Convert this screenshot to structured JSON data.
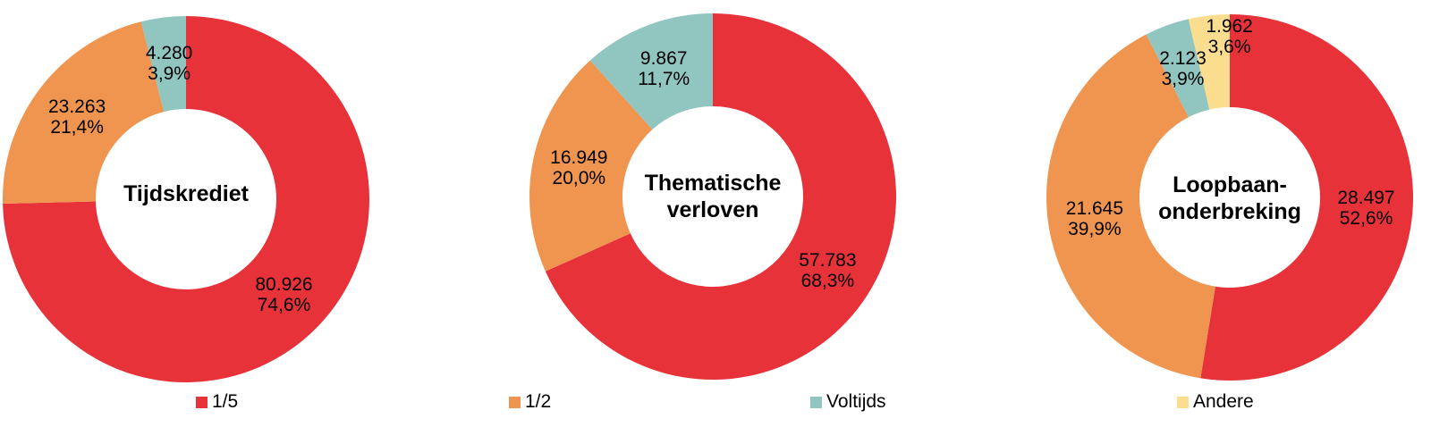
{
  "page": {
    "background": "#FFFFFF"
  },
  "chart_data": [
    {
      "type": "pie",
      "subtype": "donut",
      "title": "Tijdskrediet",
      "categories": [
        "1/5",
        "1/2",
        "Voltijds"
      ],
      "values": [
        80926,
        23263,
        4280
      ],
      "value_labels": [
        "80.926",
        "23.263",
        "4.280"
      ],
      "pct_labels": [
        "74,6%",
        "21,4%",
        "3,9%"
      ],
      "colors": [
        "#E73239",
        "#F0954F",
        "#90C5C0"
      ],
      "start_angle_deg": 0,
      "direction": "clockwise",
      "legend_position": "bottom"
    },
    {
      "type": "pie",
      "subtype": "donut",
      "title": "Thematische verloven",
      "categories": [
        "1/5",
        "1/2",
        "Voltijds"
      ],
      "values": [
        57783,
        16949,
        9867
      ],
      "value_labels": [
        "57.783",
        "16.949",
        "9.867"
      ],
      "pct_labels": [
        "68,3%",
        "20,0%",
        "11,7%"
      ],
      "colors": [
        "#E73239",
        "#F0954F",
        "#90C5C0"
      ],
      "start_angle_deg": 0,
      "direction": "clockwise",
      "legend_position": "bottom"
    },
    {
      "type": "pie",
      "subtype": "donut",
      "title": "Loopbaan-onderbreking",
      "categories": [
        "1/5",
        "1/2",
        "Voltijds",
        "Andere"
      ],
      "values": [
        28497,
        21645,
        2123,
        1962
      ],
      "value_labels": [
        "28.497",
        "21.645",
        "2.123",
        "1.962"
      ],
      "pct_labels": [
        "52,6%",
        "39,9%",
        "3,9%",
        "3,6%"
      ],
      "colors": [
        "#E73239",
        "#F0954F",
        "#90C5C0",
        "#FADD8E"
      ],
      "start_angle_deg": 0,
      "direction": "clockwise",
      "legend_position": "bottom"
    }
  ],
  "legend": {
    "position": "bottom",
    "items": [
      {
        "label": "1/5",
        "color": "#E73239"
      },
      {
        "label": "1/2",
        "color": "#F0954F"
      },
      {
        "label": "Voltijds",
        "color": "#90C5C0"
      },
      {
        "label": "Andere",
        "color": "#FADD8E"
      }
    ]
  }
}
